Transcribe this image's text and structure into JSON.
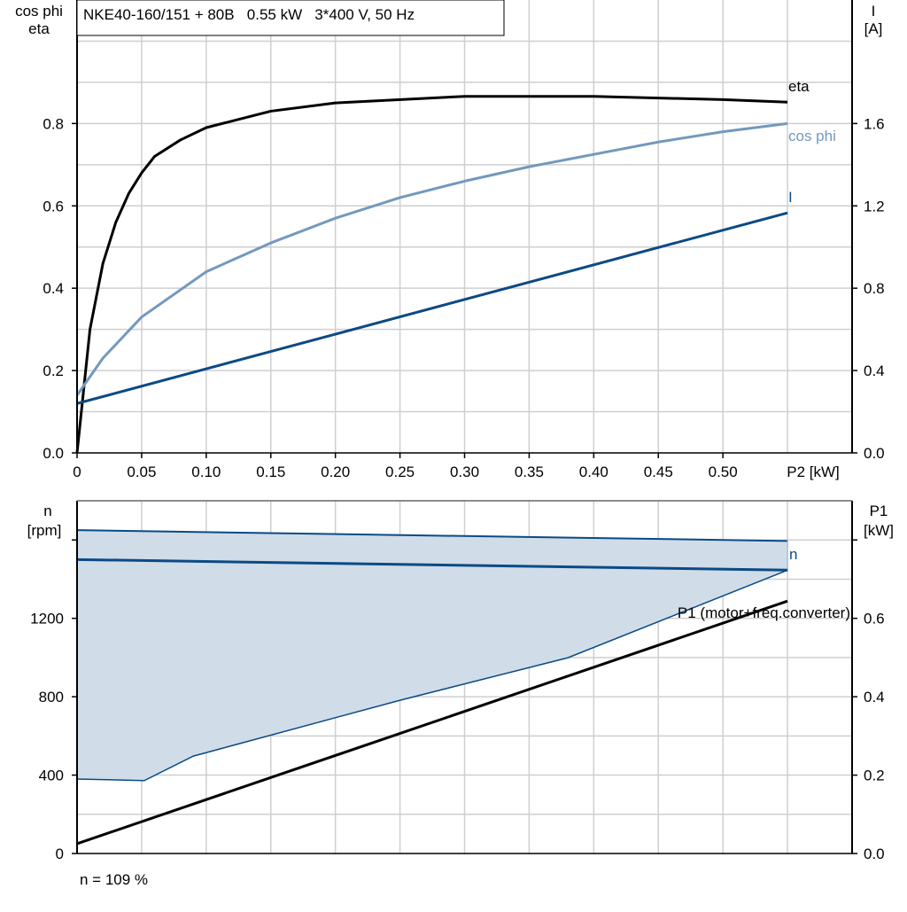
{
  "chart_data": [
    {
      "type": "line",
      "title": "NKE40-160/151 + 80B   0.55 kW   3*400 V, 50 Hz",
      "xlabel": "P2 [kW]",
      "ylabel_left": [
        "cos phi",
        "eta"
      ],
      "ylabel_right": [
        "I",
        "[A]"
      ],
      "xlim": [
        0,
        0.6
      ],
      "ylim_left": [
        0,
        1.1
      ],
      "ylim_right": [
        0,
        2.2
      ],
      "x_ticks": [
        "0",
        "0.05",
        "0.10",
        "0.15",
        "0.20",
        "0.25",
        "0.30",
        "0.35",
        "0.40",
        "0.45",
        "0.50"
      ],
      "y_ticks_left": [
        "0.0",
        "0.2",
        "0.4",
        "0.6",
        "0.8"
      ],
      "y_ticks_right": [
        "0.0",
        "0.4",
        "0.8",
        "1.2",
        "1.6"
      ],
      "grid": true,
      "series": [
        {
          "name": "eta",
          "axis": "left",
          "color": "#000000",
          "x": [
            0,
            0.01,
            0.02,
            0.03,
            0.04,
            0.05,
            0.06,
            0.08,
            0.1,
            0.15,
            0.2,
            0.3,
            0.4,
            0.5,
            0.55
          ],
          "y": [
            0,
            0.3,
            0.46,
            0.56,
            0.63,
            0.68,
            0.72,
            0.76,
            0.79,
            0.83,
            0.85,
            0.866,
            0.866,
            0.858,
            0.852
          ]
        },
        {
          "name": "cos phi",
          "axis": "left",
          "color": "#7399bd",
          "x": [
            0,
            0.02,
            0.05,
            0.1,
            0.15,
            0.2,
            0.25,
            0.3,
            0.35,
            0.4,
            0.45,
            0.5,
            0.55
          ],
          "y": [
            0.14,
            0.23,
            0.33,
            0.44,
            0.51,
            0.57,
            0.62,
            0.66,
            0.695,
            0.725,
            0.755,
            0.78,
            0.8
          ]
        },
        {
          "name": "I",
          "axis": "right",
          "color": "#0b4a85",
          "x": [
            0,
            0.55
          ],
          "y": [
            0.24,
            1.166
          ]
        }
      ]
    },
    {
      "type": "area",
      "ylabel_left": [
        "n",
        "[rpm]"
      ],
      "ylabel_right": [
        "P1",
        "[kW]"
      ],
      "xlim": [
        0,
        0.6
      ],
      "ylim_left": [
        0,
        1800
      ],
      "ylim_right": [
        0,
        0.9
      ],
      "y_ticks_left": [
        "0",
        "400",
        "800",
        "1200"
      ],
      "y_ticks_right": [
        "0.0",
        "0.2",
        "0.4",
        "0.6"
      ],
      "grid": true,
      "range_band": {
        "color": "#d0dce8",
        "edge_color": "#0b4a85",
        "upper": {
          "x": [
            0,
            0.55
          ],
          "y": [
            1650,
            1595
          ]
        },
        "lower": {
          "x": [
            0,
            0.052,
            0.09,
            0.25,
            0.38,
            0.55
          ],
          "y": [
            380,
            372,
            497,
            782,
            999,
            1446
          ]
        }
      },
      "series": [
        {
          "name": "n",
          "axis": "left",
          "color": "#0b4a85",
          "x": [
            0,
            0.55
          ],
          "y": [
            1500,
            1446
          ]
        },
        {
          "name": "P1 (motor+freq.converter)",
          "axis": "right",
          "color": "#000000",
          "x": [
            0,
            0.55
          ],
          "y": [
            0.025,
            0.644
          ]
        }
      ],
      "footnote": "n = 109 %"
    }
  ]
}
